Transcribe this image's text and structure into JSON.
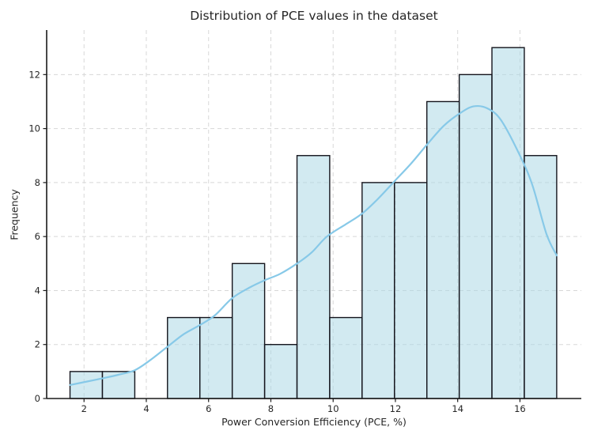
{
  "chart_data": {
    "type": "bar",
    "subtype": "histogram_with_kde",
    "title": "Distribution of PCE values in the dataset",
    "xlabel": "Power Conversion Efficiency (PCE, %)",
    "ylabel": "Frequency",
    "bin_edges": [
      1.55,
      2.59,
      3.63,
      4.68,
      5.72,
      6.76,
      7.8,
      8.84,
      9.89,
      10.93,
      11.97,
      13.01,
      14.05,
      15.1,
      16.14,
      17.18
    ],
    "counts": [
      1,
      1,
      0,
      3,
      3,
      5,
      2,
      9,
      3,
      8,
      8,
      11,
      12,
      13,
      9
    ],
    "kde_points": [
      [
        1.55,
        0.5
      ],
      [
        2.1,
        0.63
      ],
      [
        2.6,
        0.75
      ],
      [
        3.1,
        0.88
      ],
      [
        3.63,
        1.05
      ],
      [
        4.1,
        1.4
      ],
      [
        4.68,
        1.92
      ],
      [
        5.2,
        2.38
      ],
      [
        5.72,
        2.72
      ],
      [
        6.2,
        3.08
      ],
      [
        6.76,
        3.72
      ],
      [
        7.3,
        4.1
      ],
      [
        7.8,
        4.38
      ],
      [
        8.3,
        4.62
      ],
      [
        8.84,
        5.0
      ],
      [
        9.3,
        5.4
      ],
      [
        9.8,
        6.0
      ],
      [
        10.4,
        6.45
      ],
      [
        10.93,
        6.85
      ],
      [
        11.4,
        7.35
      ],
      [
        11.97,
        8.05
      ],
      [
        12.5,
        8.7
      ],
      [
        13.01,
        9.4
      ],
      [
        13.55,
        10.1
      ],
      [
        14.05,
        10.55
      ],
      [
        14.5,
        10.82
      ],
      [
        14.95,
        10.75
      ],
      [
        15.4,
        10.3
      ],
      [
        16.0,
        9.0
      ],
      [
        16.4,
        7.9
      ],
      [
        16.85,
        6.1
      ],
      [
        17.18,
        5.3
      ]
    ],
    "xticks": [
      2,
      4,
      6,
      8,
      10,
      12,
      14,
      16
    ],
    "yticks": [
      0,
      2,
      4,
      6,
      8,
      10,
      12
    ],
    "xlim": [
      0.8,
      17.97
    ],
    "ylim": [
      0,
      13.65
    ],
    "grid": true,
    "legend": false,
    "colors": {
      "bar_fill": "#add8e6",
      "bar_fill_rendered": "#d0e9f3",
      "bar_edge": "#14141c",
      "kde_line": "#87c9e8",
      "grid_line": "#d8d8d8",
      "spine": "#1a1a1a",
      "text": "#262626"
    }
  }
}
